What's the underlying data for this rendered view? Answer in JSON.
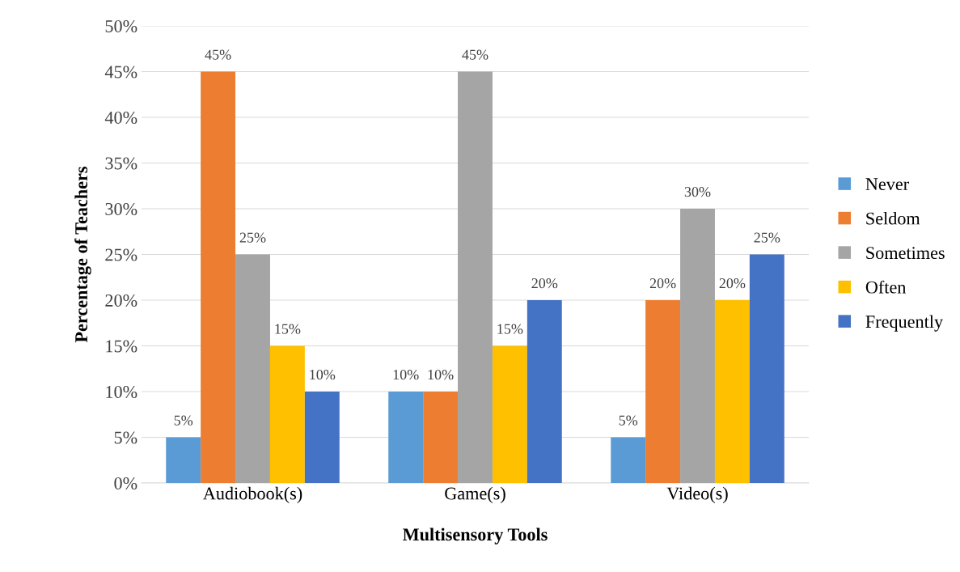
{
  "chart_data": {
    "type": "bar",
    "xlabel": "Multisensory Tools",
    "ylabel": "Percentage of Teachers",
    "categories": [
      "Audiobook(s)",
      "Game(s)",
      "Video(s)"
    ],
    "series": [
      {
        "name": "Never",
        "color": "#5b9bd5",
        "values": [
          5,
          10,
          5
        ],
        "value_labels": [
          "5%",
          "10%",
          "5%"
        ]
      },
      {
        "name": "Seldom",
        "color": "#ed7d31",
        "values": [
          45,
          10,
          20
        ],
        "value_labels": [
          "45%",
          "10%",
          "20%"
        ]
      },
      {
        "name": "Sometimes",
        "color": "#a5a5a5",
        "values": [
          25,
          45,
          30
        ],
        "value_labels": [
          "25%",
          "45%",
          "30%"
        ]
      },
      {
        "name": "Often",
        "color": "#ffc000",
        "values": [
          15,
          15,
          20
        ],
        "value_labels": [
          "15%",
          "15%",
          "20%"
        ]
      },
      {
        "name": "Frequently",
        "color": "#4472c4",
        "values": [
          10,
          20,
          25
        ],
        "value_labels": [
          "10%",
          "20%",
          "25%"
        ]
      }
    ],
    "ylim": [
      0,
      50
    ],
    "yticks": [
      {
        "value": 0,
        "label": "0%"
      },
      {
        "value": 5,
        "label": "5%"
      },
      {
        "value": 10,
        "label": "10%"
      },
      {
        "value": 15,
        "label": "15%"
      },
      {
        "value": 20,
        "label": "20%"
      },
      {
        "value": 25,
        "label": "25%"
      },
      {
        "value": 30,
        "label": "30%"
      },
      {
        "value": 35,
        "label": "35%"
      },
      {
        "value": 40,
        "label": "40%"
      },
      {
        "value": 45,
        "label": "45%"
      },
      {
        "value": 50,
        "label": "50%"
      }
    ],
    "grid": "y",
    "legend": "right"
  }
}
